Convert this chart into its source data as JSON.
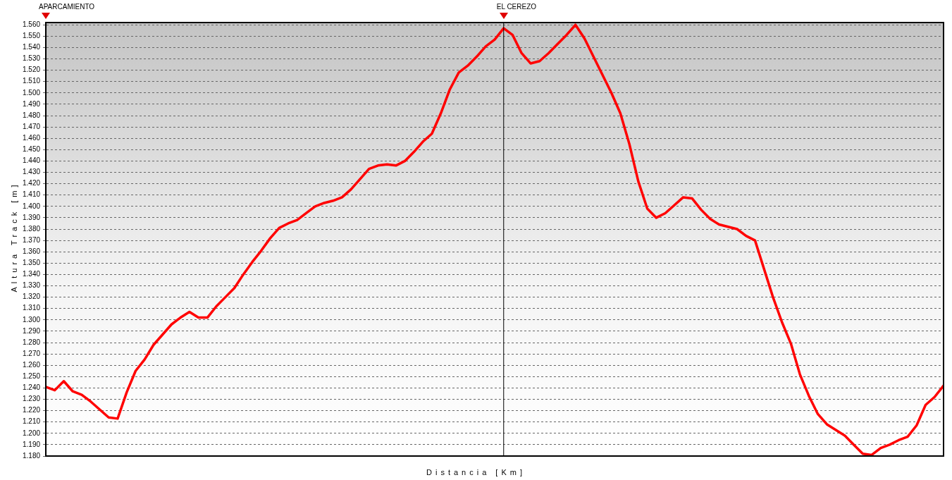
{
  "chart_data": {
    "type": "line",
    "xlabel": "Distancia [Km]",
    "ylabel": "Altura Track [m]",
    "categories": [
      null,
      null,
      null,
      null,
      null,
      null,
      null,
      null,
      null,
      null,
      null,
      null,
      null,
      null,
      null,
      null,
      null,
      null,
      null,
      null,
      null,
      null,
      null,
      null,
      null,
      null,
      null,
      null,
      null,
      null,
      null,
      null,
      null,
      null,
      null,
      null,
      null,
      null,
      null,
      null,
      null,
      null,
      null,
      null,
      null,
      null,
      null,
      null,
      null,
      null,
      null,
      null,
      null,
      null,
      null,
      null,
      null,
      null,
      null,
      null,
      null,
      null,
      null,
      null,
      null,
      null,
      null,
      null,
      null,
      null,
      null,
      null,
      null,
      null,
      null,
      null,
      null,
      null,
      null,
      null,
      null,
      null,
      null,
      null,
      null,
      null,
      null,
      null,
      null,
      null,
      null,
      null,
      null,
      null,
      null,
      null,
      null,
      null,
      null,
      null,
      null
    ],
    "series": [
      {
        "color": "#ff0000",
        "values": [
          1241,
          1238,
          1246,
          1237,
          1234,
          1228,
          1221,
          1214,
          1213,
          1236,
          1255,
          1265,
          1278,
          1287,
          1296,
          1302,
          1307,
          1302,
          1302,
          1312,
          1320,
          1328,
          1340,
          1351,
          1361,
          1372,
          1381,
          1385,
          1388,
          1394,
          1400,
          1403,
          1405,
          1408,
          1415,
          1424,
          1433,
          1436,
          1437,
          1436,
          1440,
          1448,
          1457,
          1464,
          1482,
          1503,
          1518,
          1524,
          1532,
          1541,
          1547,
          1557,
          1551,
          1535,
          1526,
          1528,
          1535,
          1543,
          1551,
          1560,
          1548,
          1532,
          1516,
          1500,
          1482,
          1455,
          1422,
          1398,
          1390,
          1394,
          1401,
          1408,
          1407,
          1397,
          1389,
          1384,
          1382,
          1380,
          1374,
          1370,
          1345,
          1320,
          1298,
          1279,
          1252,
          1233,
          1217,
          1208,
          1203,
          1198,
          1190,
          1182,
          1181,
          1187,
          1190,
          1194,
          1197,
          1207,
          1225,
          1232,
          1242
        ]
      }
    ],
    "ylim": [
      1180,
      1562
    ],
    "yticks": [
      {
        "value": 1180,
        "label": "1.180"
      },
      {
        "value": 1190,
        "label": "1.190"
      },
      {
        "value": 1200,
        "label": "1.200"
      },
      {
        "value": 1210,
        "label": "1.210"
      },
      {
        "value": 1220,
        "label": "1.220"
      },
      {
        "value": 1230,
        "label": "1.230"
      },
      {
        "value": 1240,
        "label": "1.240"
      },
      {
        "value": 1250,
        "label": "1.250"
      },
      {
        "value": 1260,
        "label": "1.260"
      },
      {
        "value": 1270,
        "label": "1.270"
      },
      {
        "value": 1280,
        "label": "1.280"
      },
      {
        "value": 1290,
        "label": "1.290"
      },
      {
        "value": 1300,
        "label": "1.300"
      },
      {
        "value": 1310,
        "label": "1.310"
      },
      {
        "value": 1320,
        "label": "1.320"
      },
      {
        "value": 1330,
        "label": "1.330"
      },
      {
        "value": 1340,
        "label": "1.340"
      },
      {
        "value": 1350,
        "label": "1.350"
      },
      {
        "value": 1360,
        "label": "1.360"
      },
      {
        "value": 1370,
        "label": "1.370"
      },
      {
        "value": 1380,
        "label": "1.380"
      },
      {
        "value": 1390,
        "label": "1.390"
      },
      {
        "value": 1400,
        "label": "1.400"
      },
      {
        "value": 1410,
        "label": "1.410"
      },
      {
        "value": 1420,
        "label": "1.420"
      },
      {
        "value": 1430,
        "label": "1.430"
      },
      {
        "value": 1440,
        "label": "1.440"
      },
      {
        "value": 1450,
        "label": "1.450"
      },
      {
        "value": 1460,
        "label": "1.460"
      },
      {
        "value": 1470,
        "label": "1.470"
      },
      {
        "value": 1480,
        "label": "1.480"
      },
      {
        "value": 1490,
        "label": "1.490"
      },
      {
        "value": 1500,
        "label": "1.500"
      },
      {
        "value": 1510,
        "label": "1.510"
      },
      {
        "value": 1520,
        "label": "1.520"
      },
      {
        "value": 1530,
        "label": "1.530"
      },
      {
        "value": 1540,
        "label": "1.540"
      },
      {
        "value": 1550,
        "label": "1.550"
      },
      {
        "value": 1560,
        "label": "1.560"
      }
    ],
    "tick_labels": "y",
    "grid": "y",
    "line_style": "solid",
    "marker": "none",
    "annotations": [
      "APARCAMIENTO",
      "EL CEREZO"
    ]
  }
}
